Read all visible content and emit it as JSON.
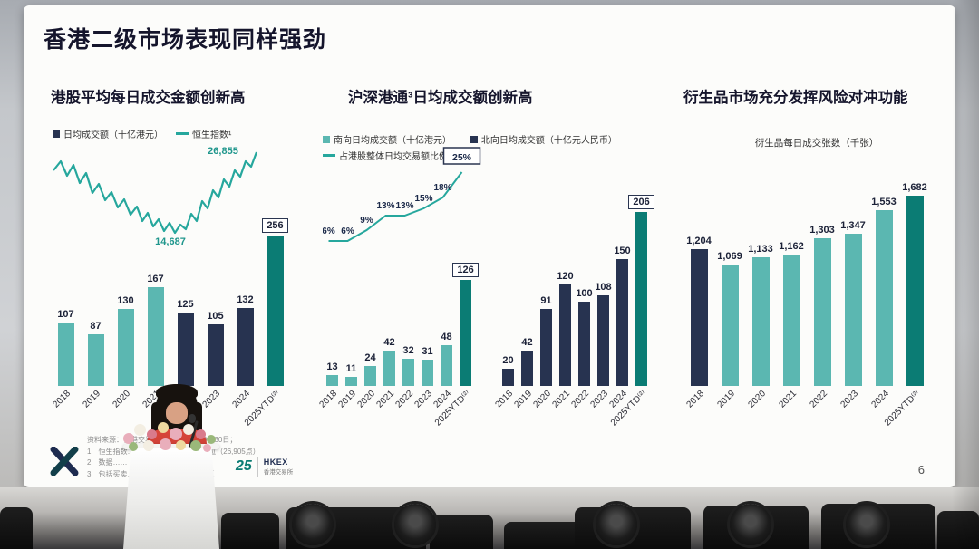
{
  "slide": {
    "title": "香港二级市场表现同样强劲",
    "page_number": "6",
    "source_line": "资料来源：香港交易所……数据截至9月30日；",
    "notes": [
      "1　恒生指数……升至2022年以来新高位（26,905点）",
      "2　数据……",
      "3　包括买卖……；交易占比按单边计算"
    ],
    "logo": {
      "anniversary": "25",
      "brand": "HKEX",
      "brand_cn": "香港交易所"
    }
  },
  "colors": {
    "teal": "#5bb7b1",
    "navy": "#273350",
    "dark_teal": "#0b7c74",
    "line_teal": "#26a79d",
    "title": "#15152c"
  },
  "chart_data": [
    {
      "type": "bar",
      "title": "港股平均每日成交金额创新高",
      "legend": [
        {
          "label": "日均成交额（十亿港元）",
          "swatch": "navy-square"
        },
        {
          "label": "恒生指数¹",
          "swatch": "teal-line"
        }
      ],
      "categories": [
        "2018",
        "2019",
        "2020",
        "2021",
        "2022",
        "2023",
        "2024",
        "2025YTD⁽²⁾"
      ],
      "values": [
        107,
        87,
        130,
        167,
        125,
        105,
        132,
        256
      ],
      "value_labels": [
        "107",
        "87",
        "130",
        "167",
        "125",
        "105",
        "132",
        "256"
      ],
      "bar_colors": [
        "teal",
        "teal",
        "teal",
        "teal",
        "navy",
        "navy",
        "navy",
        "dark_teal"
      ],
      "ylim": [
        0,
        280
      ],
      "hsi_line": {
        "name": "恒生指数",
        "low_label": "14,687",
        "high_label": "26,855"
      }
    },
    {
      "type": "grouped-bar-line",
      "title": "沪深港通³日均成交额创新高",
      "legend": [
        {
          "label": "南向日均成交额（十亿港元）",
          "swatch": "teal-square"
        },
        {
          "label": "占港股整体日均交易额比例%",
          "swatch": "teal-line"
        },
        {
          "label": "北向日均成交额（十亿元人民币）",
          "swatch": "navy-square"
        }
      ],
      "categories": [
        "2018",
        "2019",
        "2020",
        "2021",
        "2022",
        "2023",
        "2024",
        "2025YTD⁽²⁾"
      ],
      "series": [
        {
          "name": "南向日均成交额",
          "values": [
            13,
            11,
            24,
            42,
            32,
            31,
            48,
            126
          ],
          "value_labels": [
            "13",
            "11",
            "24",
            "42",
            "32",
            "31",
            "48",
            "126"
          ],
          "bar_colors": [
            "teal",
            "teal",
            "teal",
            "teal",
            "teal",
            "teal",
            "teal",
            "dark_teal"
          ]
        },
        {
          "name": "北向日均成交额",
          "values": [
            20,
            42,
            91,
            120,
            100,
            108,
            150,
            206
          ],
          "value_labels": [
            "20",
            "42",
            "91",
            "120",
            "100",
            "108",
            "150",
            "206"
          ],
          "bar_colors": [
            "navy",
            "navy",
            "navy",
            "navy",
            "navy",
            "navy",
            "navy",
            "dark_teal"
          ]
        },
        {
          "name": "占港股整体日均交易额比例%",
          "unit": "%",
          "values": [
            6,
            6,
            9,
            13,
            13,
            15,
            18,
            25
          ],
          "value_labels": [
            "6%",
            "6%",
            "9%",
            "13%",
            "13%",
            "15%",
            "18%",
            "25%"
          ]
        }
      ],
      "ylim": [
        0,
        220
      ]
    },
    {
      "type": "bar",
      "title": "衍生品市场充分发挥风险对冲功能",
      "subtitle": "衍生品每日成交张数（千张）",
      "categories": [
        "2018",
        "2019",
        "2020",
        "2021",
        "2022",
        "2023",
        "2024",
        "2025YTD⁽²⁾"
      ],
      "values": [
        1204,
        1069,
        1133,
        1162,
        1303,
        1347,
        1553,
        1682
      ],
      "value_labels": [
        "1,204",
        "1,069",
        "1,133",
        "1,162",
        "1,303",
        "1,347",
        "1,553",
        "1,682"
      ],
      "bar_colors": [
        "navy",
        "teal",
        "teal",
        "teal",
        "teal",
        "teal",
        "teal",
        "dark_teal"
      ],
      "ylim": [
        0,
        1800
      ]
    }
  ]
}
